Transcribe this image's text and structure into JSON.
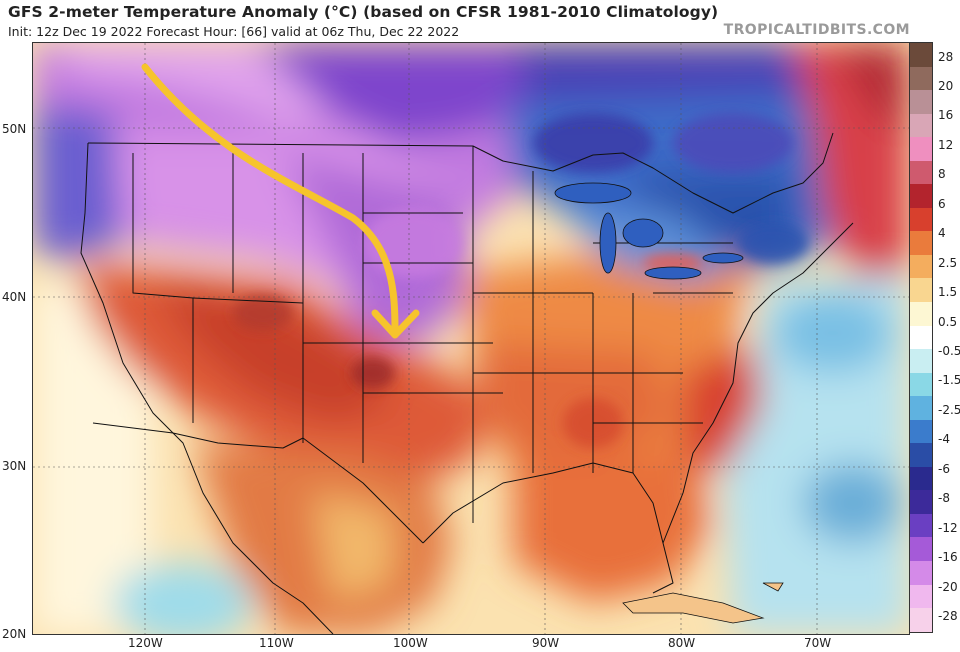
{
  "header": {
    "title": "GFS 2-meter Temperature Anomaly (°C) (based on CFSR 1981-2010 Climatology)",
    "subtitle": "Init: 12z Dec 19 2022   Forecast Hour: [66]   valid at 06z Thu, Dec 22 2022",
    "credit": "TROPICALTIDBITS.COM"
  },
  "axes": {
    "lat_labels": [
      "50N",
      "40N",
      "30N",
      "20N"
    ],
    "lon_labels": [
      "120W",
      "110W",
      "100W",
      "90W",
      "80W",
      "70W"
    ]
  },
  "colorbar": {
    "labels": [
      "28",
      "20",
      "16",
      "12",
      "8",
      "6",
      "4",
      "2.5",
      "1.5",
      "0.5",
      "-0.5",
      "-1.5",
      "-2.5",
      "-4",
      "-6",
      "-8",
      "-12",
      "-16",
      "-20",
      "-28"
    ],
    "colors": [
      "#6b4a3a",
      "#8f6a5d",
      "#b99096",
      "#d9a6b6",
      "#ef8fbf",
      "#cf5a6e",
      "#b3242d",
      "#d8402d",
      "#ea7b3c",
      "#f4ad5e",
      "#f9d690",
      "#fdf7d3",
      "#ffffff",
      "#c9eef2",
      "#8ad8e6",
      "#5fb2e0",
      "#3b7ccc",
      "#2a4da6",
      "#2a2a8e",
      "#3c2a9a",
      "#6a3fc2",
      "#a55ad8",
      "#d48ae8",
      "#f0b8ee",
      "#f7d1ea"
    ]
  },
  "annotation": {
    "arrow_color": "#f6c42c"
  }
}
